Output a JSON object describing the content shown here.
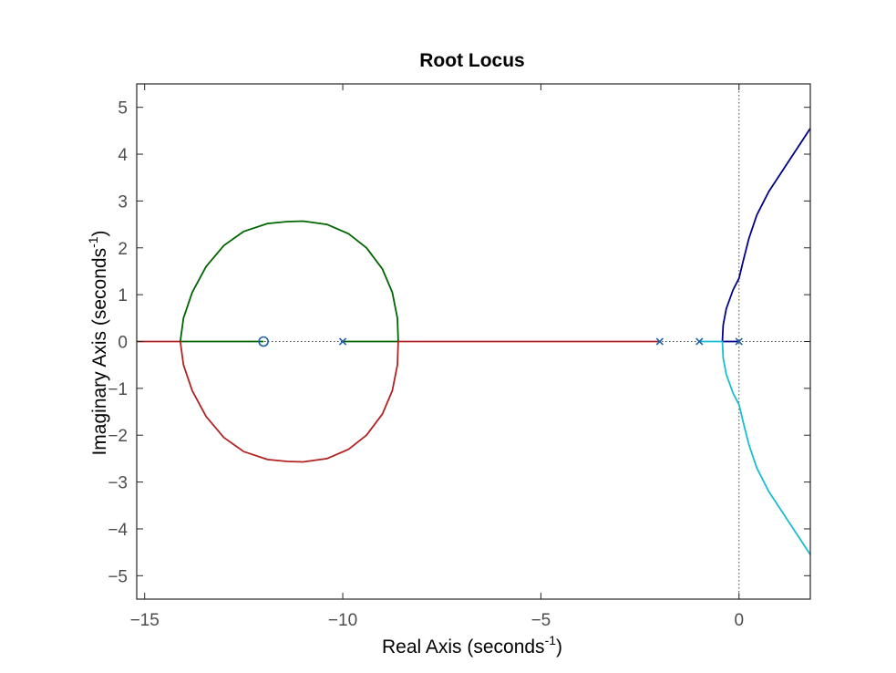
{
  "chart_data": {
    "type": "line",
    "title": "Root Locus",
    "xlabel": "Real Axis (seconds",
    "ylabel": "Imaginary Axis (seconds",
    "unit_exponent": "-1",
    "label_close": ")",
    "xlim": [
      -15.2,
      1.8
    ],
    "ylim": [
      -5.5,
      5.5
    ],
    "xticks": [
      -15,
      -10,
      -5,
      0
    ],
    "yticks": [
      -5,
      -4,
      -3,
      -2,
      -1,
      0,
      1,
      2,
      3,
      4,
      5
    ],
    "xtick_labels": [
      "−15",
      "−10",
      "−5",
      "0"
    ],
    "ytick_labels": [
      "−5",
      "−4",
      "−3",
      "−2",
      "−1",
      "0",
      "1",
      "2",
      "3",
      "4",
      "5"
    ],
    "grid": false,
    "legend": "none",
    "poles": [
      {
        "x": -10,
        "y": 0
      },
      {
        "x": -2,
        "y": 0
      },
      {
        "x": -1,
        "y": 0
      },
      {
        "x": 0,
        "y": 0
      }
    ],
    "zeros": [
      {
        "x": -12,
        "y": 0
      }
    ],
    "series": [
      {
        "color": "#00008b",
        "points": [
          [
            0,
            0
          ],
          [
            -0.2,
            0
          ],
          [
            -0.42,
            0
          ],
          [
            -0.4,
            0.35
          ],
          [
            -0.32,
            0.7
          ],
          [
            -0.15,
            1.1
          ],
          [
            0,
            1.35
          ],
          [
            0.1,
            1.7
          ],
          [
            0.25,
            2.2
          ],
          [
            0.45,
            2.7
          ],
          [
            0.75,
            3.2
          ],
          [
            1.1,
            3.65
          ],
          [
            1.45,
            4.1
          ],
          [
            1.8,
            4.55
          ]
        ]
      },
      {
        "color": "#17becf",
        "points": [
          [
            -1,
            0
          ],
          [
            -0.7,
            0
          ],
          [
            -0.42,
            0
          ],
          [
            -0.4,
            -0.35
          ],
          [
            -0.32,
            -0.7
          ],
          [
            -0.15,
            -1.1
          ],
          [
            0,
            -1.35
          ],
          [
            0.1,
            -1.7
          ],
          [
            0.25,
            -2.2
          ],
          [
            0.45,
            -2.7
          ],
          [
            0.75,
            -3.2
          ],
          [
            1.1,
            -3.65
          ],
          [
            1.45,
            -4.1
          ],
          [
            1.8,
            -4.55
          ]
        ]
      },
      {
        "color": "#006400",
        "points": [
          [
            -10,
            0
          ],
          [
            -9.2,
            0
          ],
          [
            -8.6,
            0
          ],
          [
            -8.62,
            0.5
          ],
          [
            -8.75,
            1.05
          ],
          [
            -9.0,
            1.55
          ],
          [
            -9.4,
            2.0
          ],
          [
            -9.85,
            2.3
          ],
          [
            -10.4,
            2.5
          ],
          [
            -11.0,
            2.57
          ],
          [
            -11.4,
            2.56
          ],
          [
            -11.9,
            2.52
          ],
          [
            -12.5,
            2.35
          ],
          [
            -13.0,
            2.05
          ],
          [
            -13.45,
            1.6
          ],
          [
            -13.8,
            1.05
          ],
          [
            -14.02,
            0.5
          ],
          [
            -14.1,
            0
          ],
          [
            -13.2,
            0
          ],
          [
            -12.5,
            0
          ],
          [
            -12,
            0
          ]
        ]
      },
      {
        "color": "#b22222",
        "points": [
          [
            -2,
            0
          ],
          [
            -3.5,
            0
          ],
          [
            -5.5,
            0
          ],
          [
            -7.5,
            0
          ],
          [
            -8.6,
            0
          ],
          [
            -8.62,
            -0.5
          ],
          [
            -8.75,
            -1.05
          ],
          [
            -9.0,
            -1.55
          ],
          [
            -9.4,
            -2.0
          ],
          [
            -9.85,
            -2.3
          ],
          [
            -10.4,
            -2.5
          ],
          [
            -11.0,
            -2.57
          ],
          [
            -11.4,
            -2.56
          ],
          [
            -11.9,
            -2.52
          ],
          [
            -12.5,
            -2.35
          ],
          [
            -13.0,
            -2.05
          ],
          [
            -13.45,
            -1.6
          ],
          [
            -13.8,
            -1.05
          ],
          [
            -14.02,
            -0.5
          ],
          [
            -14.1,
            0
          ],
          [
            -14.5,
            0
          ],
          [
            -15.2,
            0
          ]
        ]
      }
    ]
  }
}
